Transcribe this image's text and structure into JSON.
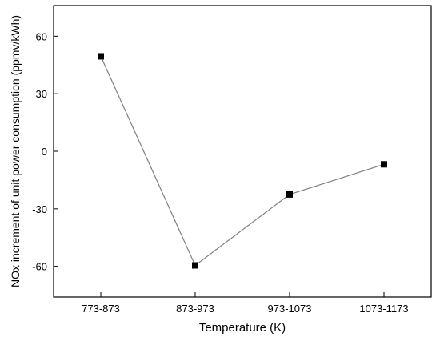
{
  "chart_data": {
    "type": "line",
    "categories": [
      "773-873",
      "873-973",
      "973-1073",
      "1073-1173"
    ],
    "series": [
      {
        "values": [
          49.5,
          -59.5,
          -22.5,
          -6.8
        ],
        "marker": "square",
        "color": "#000000",
        "line_color": "#7f7f7f"
      }
    ],
    "xlabel": "Temperature (K)",
    "ylabel": "NOx increment of unit power consumption (ppmv/kWh)",
    "yticks": [
      60,
      30,
      0,
      -30,
      -60
    ],
    "ylim": [
      -76,
      76
    ],
    "grid": false
  }
}
